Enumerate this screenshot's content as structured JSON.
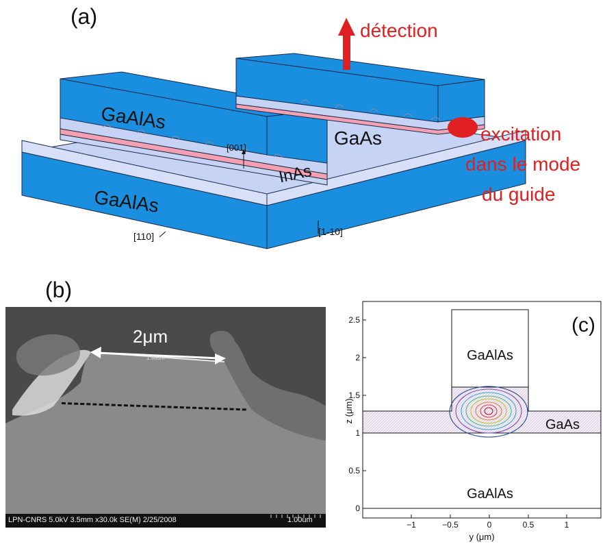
{
  "panel_a": {
    "label": "(a)",
    "detection": "détection",
    "excitation_lines": [
      "excitation",
      "dans le mode",
      "du guide"
    ],
    "layer_top_left": "GaAlAs",
    "layer_bottom": "GaAlAs",
    "layer_gaas": "GaAs",
    "layer_inas": "InAs",
    "axis_001": "[001]",
    "axis_110": "[110]",
    "axis_1m10": "[1-10]",
    "colors": {
      "blue": "#1a8fe0",
      "light_layer": "#c6d3f5",
      "inas": "#f4a0b0",
      "red": "#e02020"
    }
  },
  "panel_b": {
    "label": "(b)",
    "scale": "2μm",
    "footer_left": "LPN-CNRS 5.0kV 3.5mm x30.0k SE(M) 2/25/2008",
    "footer_right": "1.00um",
    "ruler_small": "1.98um"
  },
  "panel_c": {
    "label": "(c)",
    "label_top": "GaAlAs",
    "label_gaas": "GaAs",
    "label_bottom": "GaAlAs",
    "ylabel": "z (μm)",
    "xlabel": "y (μm)",
    "yticks": [
      "0",
      "0.5",
      "1",
      "1.5",
      "2",
      "2.5"
    ],
    "xticks": [
      "−1",
      "−0.5",
      "0",
      "0.5",
      "1"
    ]
  }
}
